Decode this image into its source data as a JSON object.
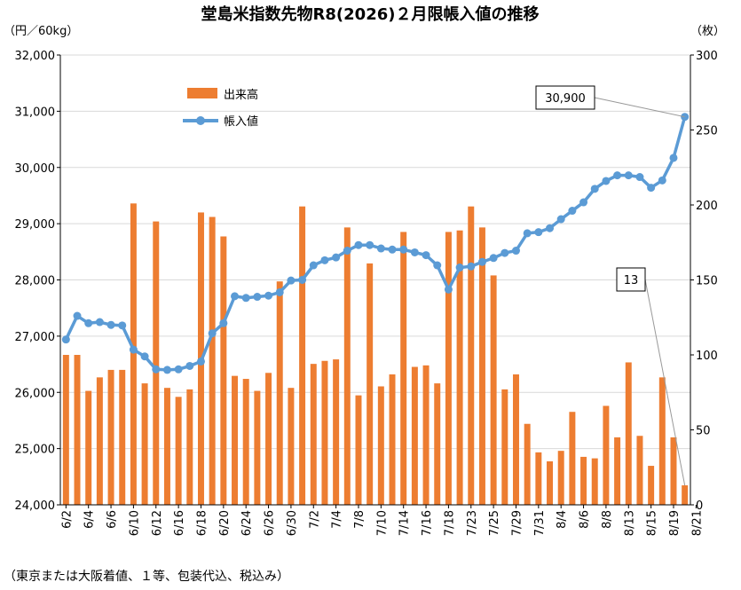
{
  "chart_data": {
    "type": "bar+line",
    "title": "堂島米指数先物R8(2026)２月限帳入値の推移",
    "y_left_unit": "（円／60kg）",
    "y_right_unit": "（枚）",
    "ylim_left": [
      24000,
      32000
    ],
    "ylim_right": [
      0,
      300
    ],
    "y_left_ticks": [
      "24,000",
      "25,000",
      "26,000",
      "27,000",
      "28,000",
      "29,000",
      "30,000",
      "31,000",
      "32,000"
    ],
    "y_right_ticks": [
      "0",
      "50",
      "100",
      "150",
      "200",
      "250",
      "300"
    ],
    "grid": true,
    "legend_position": "upper-left",
    "legend": [
      {
        "name": "出来高",
        "color": "#ED7D31",
        "kind": "bar"
      },
      {
        "name": "帳入値",
        "color": "#5B9BD5",
        "kind": "line"
      }
    ],
    "x_tick_labels": [
      "6/2",
      "6/4",
      "6/6",
      "6/10",
      "6/12",
      "6/16",
      "6/18",
      "6/20",
      "6/24",
      "6/26",
      "6/30",
      "7/2",
      "7/4",
      "7/8",
      "7/10",
      "7/14",
      "7/16",
      "7/18",
      "7/23",
      "7/25",
      "7/29",
      "7/31",
      "8/4",
      "8/6",
      "8/8",
      "8/13",
      "8/15",
      "8/19",
      "8/21"
    ],
    "x_tick_every": 2,
    "volume": [
      100,
      100,
      76,
      85,
      90,
      90,
      201,
      81,
      189,
      78,
      72,
      77,
      195,
      192,
      179,
      86,
      84,
      76,
      88,
      149,
      78,
      199,
      94,
      96,
      97,
      185,
      73,
      161,
      79,
      87,
      182,
      92,
      93,
      81,
      182,
      183,
      199,
      185,
      153,
      77,
      87,
      54,
      35,
      29,
      36,
      62,
      32,
      31,
      66,
      45,
      95,
      46,
      26,
      85,
      45,
      13
    ],
    "price": [
      26940,
      27360,
      27230,
      27250,
      27200,
      27190,
      26760,
      26640,
      26410,
      26400,
      26410,
      26470,
      26550,
      27050,
      27230,
      27710,
      27680,
      27700,
      27720,
      27780,
      27990,
      28000,
      28260,
      28350,
      28400,
      28520,
      28620,
      28620,
      28560,
      28540,
      28540,
      28490,
      28440,
      28260,
      27830,
      28220,
      28240,
      28320,
      28390,
      28480,
      28520,
      28830,
      28850,
      28920,
      29080,
      29230,
      29380,
      29620,
      29760,
      29860,
      29860,
      29830,
      29640,
      29770,
      30170,
      30900
    ],
    "annotations": [
      {
        "text": "30,900",
        "target_index": 55,
        "series": "price"
      },
      {
        "text": "13",
        "target_index": 55,
        "series": "volume"
      }
    ],
    "footnote": "（東京または大阪着値、１等、包装代込、税込み）"
  }
}
